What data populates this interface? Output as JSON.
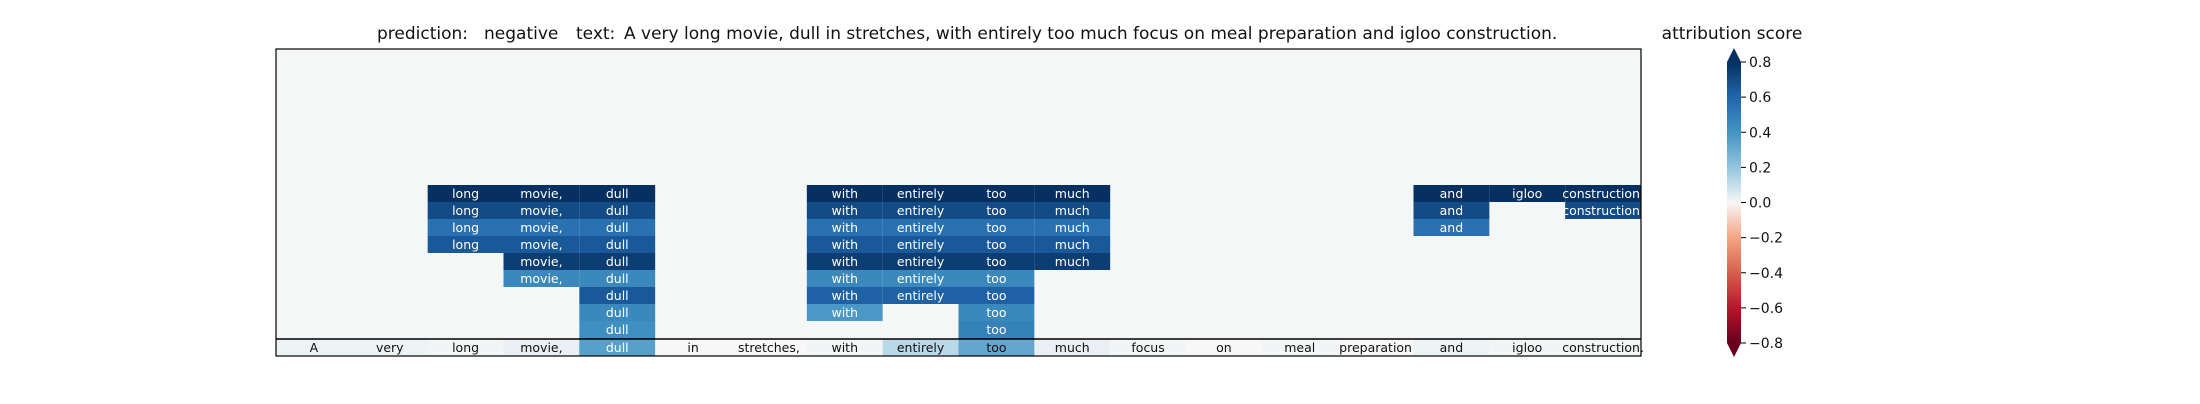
{
  "title": {
    "prediction_label": "prediction:",
    "prediction_value": "negative",
    "text_label": "text:",
    "text_value": "A very long movie, dull in stretches, with entirely too much focus on meal preparation and igloo construction."
  },
  "colorbar_label": "attribution score",
  "colors": {
    "background": "#f5f6f6",
    "frame": "#000000",
    "text_dark": "#111111",
    "text_light": "#ffffff"
  },
  "chart_data": {
    "type": "heatmap",
    "title": "prediction:  negative     text:  A very long movie, dull in stretches, with entirely too much focus on meal preparation and igloo construction.",
    "tokens": [
      "A",
      "very",
      "long",
      "movie,",
      "dull",
      "in",
      "stretches,",
      "with",
      "entirely",
      "too",
      "much",
      "focus",
      "on",
      "meal",
      "preparation",
      "and",
      "igloo",
      "construction."
    ],
    "colormap": "RdBu",
    "clim": [
      -0.8,
      0.8
    ],
    "colorbar_ticks": [
      -0.8,
      -0.6,
      -0.4,
      -0.2,
      0.0,
      0.2,
      0.4,
      0.6,
      0.8
    ],
    "colorbar_extend": "both",
    "colorbar_label": "attribution score",
    "base_row": [
      0.02,
      0.02,
      0.01,
      0.03,
      0.35,
      0.0,
      0.0,
      0.01,
      0.12,
      0.32,
      0.03,
      0.01,
      0.0,
      0.01,
      0.0,
      0.02,
      0.01,
      0.01
    ],
    "cells": [
      {
        "row": 0,
        "col": 2,
        "value": 0.8
      },
      {
        "row": 0,
        "col": 3,
        "value": 0.8
      },
      {
        "row": 0,
        "col": 4,
        "value": 0.8
      },
      {
        "row": 0,
        "col": 7,
        "value": 0.8
      },
      {
        "row": 0,
        "col": 8,
        "value": 0.8
      },
      {
        "row": 0,
        "col": 9,
        "value": 0.8
      },
      {
        "row": 0,
        "col": 10,
        "value": 0.8
      },
      {
        "row": 0,
        "col": 15,
        "value": 0.8
      },
      {
        "row": 0,
        "col": 16,
        "value": 0.8
      },
      {
        "row": 0,
        "col": 17,
        "value": 0.8
      },
      {
        "row": 1,
        "col": 2,
        "value": 0.7
      },
      {
        "row": 1,
        "col": 3,
        "value": 0.7
      },
      {
        "row": 1,
        "col": 4,
        "value": 0.7
      },
      {
        "row": 1,
        "col": 7,
        "value": 0.7
      },
      {
        "row": 1,
        "col": 8,
        "value": 0.7
      },
      {
        "row": 1,
        "col": 9,
        "value": 0.7
      },
      {
        "row": 1,
        "col": 10,
        "value": 0.7
      },
      {
        "row": 1,
        "col": 15,
        "value": 0.7
      },
      {
        "row": 1,
        "col": 17,
        "value": 0.7
      },
      {
        "row": 2,
        "col": 2,
        "value": 0.55
      },
      {
        "row": 2,
        "col": 3,
        "value": 0.55
      },
      {
        "row": 2,
        "col": 4,
        "value": 0.55
      },
      {
        "row": 2,
        "col": 7,
        "value": 0.55
      },
      {
        "row": 2,
        "col": 8,
        "value": 0.55
      },
      {
        "row": 2,
        "col": 9,
        "value": 0.55
      },
      {
        "row": 2,
        "col": 10,
        "value": 0.55
      },
      {
        "row": 2,
        "col": 15,
        "value": 0.55
      },
      {
        "row": 3,
        "col": 2,
        "value": 0.65
      },
      {
        "row": 3,
        "col": 3,
        "value": 0.65
      },
      {
        "row": 3,
        "col": 4,
        "value": 0.65
      },
      {
        "row": 3,
        "col": 7,
        "value": 0.65
      },
      {
        "row": 3,
        "col": 8,
        "value": 0.65
      },
      {
        "row": 3,
        "col": 9,
        "value": 0.65
      },
      {
        "row": 3,
        "col": 10,
        "value": 0.65
      },
      {
        "row": 4,
        "col": 3,
        "value": 0.75
      },
      {
        "row": 4,
        "col": 4,
        "value": 0.75
      },
      {
        "row": 4,
        "col": 7,
        "value": 0.75
      },
      {
        "row": 4,
        "col": 8,
        "value": 0.75
      },
      {
        "row": 4,
        "col": 9,
        "value": 0.75
      },
      {
        "row": 4,
        "col": 10,
        "value": 0.75
      },
      {
        "row": 5,
        "col": 3,
        "value": 0.45
      },
      {
        "row": 5,
        "col": 4,
        "value": 0.45
      },
      {
        "row": 5,
        "col": 7,
        "value": 0.45
      },
      {
        "row": 5,
        "col": 8,
        "value": 0.45
      },
      {
        "row": 5,
        "col": 9,
        "value": 0.45
      },
      {
        "row": 6,
        "col": 4,
        "value": 0.65
      },
      {
        "row": 6,
        "col": 7,
        "value": 0.62
      },
      {
        "row": 6,
        "col": 8,
        "value": 0.62
      },
      {
        "row": 6,
        "col": 9,
        "value": 0.62
      },
      {
        "row": 7,
        "col": 4,
        "value": 0.45
      },
      {
        "row": 7,
        "col": 7,
        "value": 0.38
      },
      {
        "row": 7,
        "col": 9,
        "value": 0.45
      },
      {
        "row": 8,
        "col": 4,
        "value": 0.42
      },
      {
        "row": 8,
        "col": 9,
        "value": 0.48
      },
      {
        "row": 9,
        "col": 4,
        "value": 0.58
      },
      {
        "row": 9,
        "col": 9,
        "value": 0.62
      }
    ]
  }
}
